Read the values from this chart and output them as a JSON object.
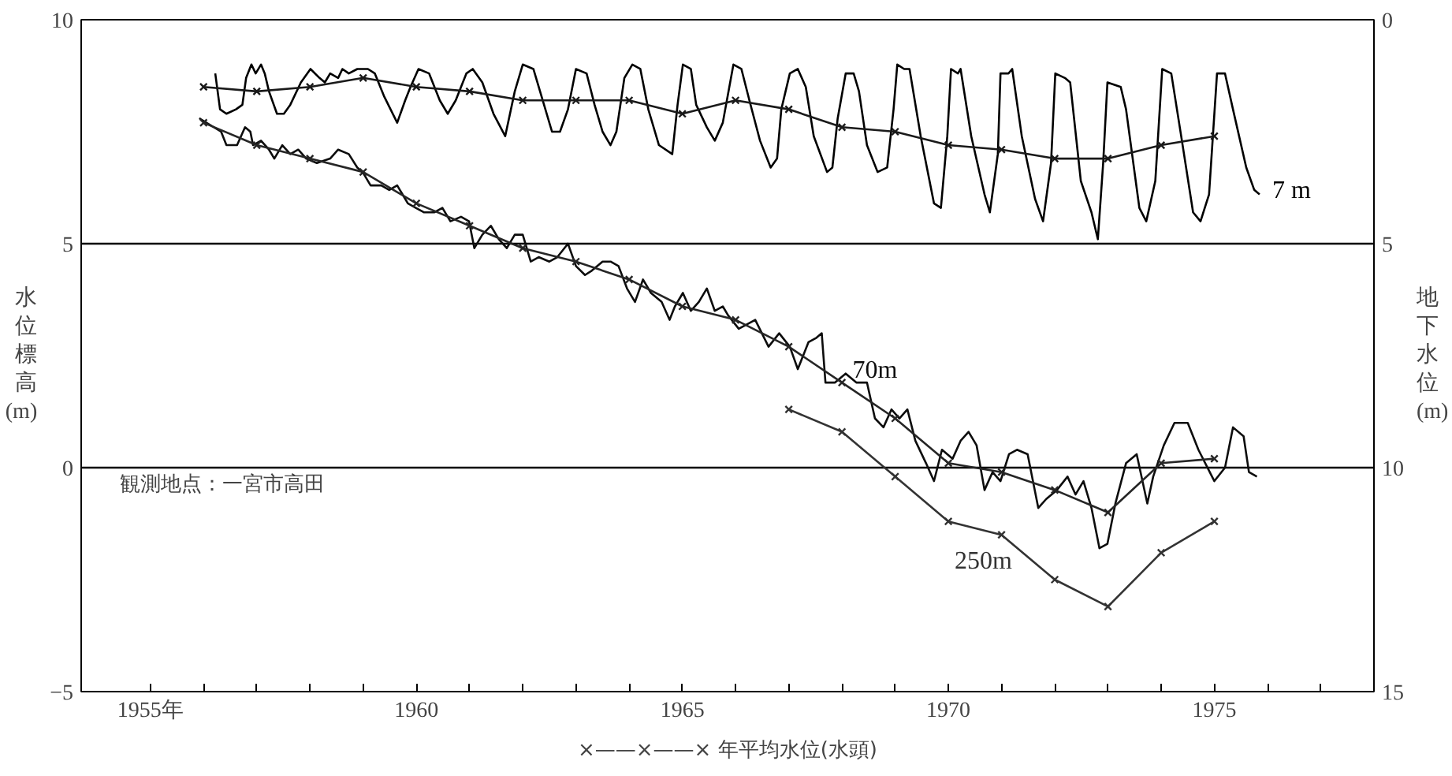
{
  "chart_data": {
    "type": "line",
    "xlim": [
      1953.7,
      1978
    ],
    "ylim": [
      -5,
      10
    ],
    "y2lim": [
      15,
      0
    ],
    "xticks": [
      {
        "value": 1955,
        "label": "1955年"
      },
      {
        "value": 1956,
        "label": null
      },
      {
        "value": 1957,
        "label": null
      },
      {
        "value": 1958,
        "label": null
      },
      {
        "value": 1959,
        "label": null
      },
      1960,
      {
        "value": 1961,
        "label": null
      },
      {
        "value": 1962,
        "label": null
      },
      {
        "value": 1963,
        "label": null
      },
      {
        "value": 1964,
        "label": null
      },
      1965,
      {
        "value": 1966,
        "label": null
      },
      {
        "value": 1967,
        "label": null
      },
      {
        "value": 1968,
        "label": null
      },
      {
        "value": 1969,
        "label": null
      },
      1970,
      {
        "value": 1971,
        "label": null
      },
      {
        "value": 1972,
        "label": null
      },
      {
        "value": 1973,
        "label": null
      },
      {
        "value": 1974,
        "label": null
      },
      1975,
      {
        "value": 1976,
        "label": null
      },
      {
        "value": 1977,
        "label": null
      }
    ],
    "yticks": [
      {
        "value": -5,
        "label": "−5"
      },
      0,
      5,
      10
    ],
    "y2ticks": [
      0,
      5,
      10,
      15
    ],
    "ylabel": "水位標高(m)",
    "y2label": "地下水位(m)",
    "grid": "y",
    "legend": false,
    "annotations": [
      "観測地点：一宮市高田",
      "×——×——× 年平均水位(水頭)"
    ],
    "series": [
      {
        "name": "7 m",
        "color": "#000000",
        "marker": "none",
        "x": [
          1956.22,
          1956.31,
          1956.43,
          1956.61,
          1956.73,
          1956.8,
          1956.9,
          1956.98,
          1957.08,
          1957.15,
          1957.23,
          1957.38,
          1957.51,
          1957.63,
          1957.83,
          1958.01,
          1958.18,
          1958.28,
          1958.38,
          1958.53,
          1958.61,
          1958.73,
          1958.89,
          1959.09,
          1959.22,
          1959.39,
          1959.64,
          1959.79,
          1959.89,
          1960.04,
          1960.24,
          1960.44,
          1960.59,
          1960.74,
          1960.94,
          1961.06,
          1961.24,
          1961.45,
          1961.67,
          1961.85,
          1962.0,
          1962.2,
          1962.4,
          1962.55,
          1962.7,
          1962.85,
          1963.0,
          1963.2,
          1963.35,
          1963.5,
          1963.65,
          1963.76,
          1963.91,
          1964.06,
          1964.21,
          1964.36,
          1964.56,
          1964.81,
          1964.91,
          1965.01,
          1965.16,
          1965.26,
          1965.46,
          1965.61,
          1965.76,
          1965.96,
          1966.11,
          1966.26,
          1966.46,
          1966.66,
          1966.78,
          1966.86,
          1967.02,
          1967.17,
          1967.32,
          1967.47,
          1967.72,
          1967.82,
          1967.92,
          1968.07,
          1968.22,
          1968.32,
          1968.47,
          1968.67,
          1968.85,
          1968.97,
          1969.04,
          1969.17,
          1969.27,
          1969.48,
          1969.73,
          1969.86,
          1969.98,
          1970.05,
          1970.18,
          1970.23,
          1970.43,
          1970.68,
          1970.78,
          1970.93,
          1970.98,
          1971.13,
          1971.2,
          1971.38,
          1971.63,
          1971.78,
          1971.93,
          1972.01,
          1972.19,
          1972.29,
          1972.49,
          1972.69,
          1972.81,
          1972.91,
          1972.99,
          1973.24,
          1973.34,
          1973.59,
          1973.72,
          1973.89,
          1974.02,
          1974.19,
          1974.39,
          1974.6,
          1974.74,
          1974.9,
          1975.05,
          1975.2,
          1975.35,
          1975.6,
          1975.75,
          1975.85
        ],
        "values": [
          8.8,
          8.0,
          7.9,
          8.0,
          8.1,
          8.7,
          9.0,
          8.8,
          9.0,
          8.8,
          8.4,
          7.9,
          7.9,
          8.1,
          8.6,
          8.9,
          8.7,
          8.6,
          8.8,
          8.7,
          8.9,
          8.8,
          8.9,
          8.9,
          8.8,
          8.3,
          7.7,
          8.2,
          8.5,
          8.9,
          8.8,
          8.2,
          7.9,
          8.2,
          8.8,
          8.9,
          8.6,
          7.9,
          7.4,
          8.4,
          9.0,
          8.9,
          8.1,
          7.5,
          7.5,
          8.0,
          8.9,
          8.8,
          8.1,
          7.5,
          7.2,
          7.5,
          8.7,
          9.0,
          8.9,
          8.0,
          7.2,
          7.0,
          8.1,
          9.0,
          8.9,
          8.1,
          7.6,
          7.3,
          7.7,
          9.0,
          8.9,
          8.2,
          7.3,
          6.7,
          6.9,
          8.0,
          8.8,
          8.9,
          8.5,
          7.4,
          6.6,
          6.7,
          7.8,
          8.8,
          8.8,
          8.4,
          7.2,
          6.6,
          6.7,
          8.0,
          9.0,
          8.9,
          8.9,
          7.4,
          5.9,
          5.8,
          7.4,
          8.9,
          8.8,
          8.9,
          7.4,
          6.1,
          5.7,
          7.0,
          8.8,
          8.8,
          8.9,
          7.4,
          6.0,
          5.5,
          6.8,
          8.8,
          8.7,
          8.6,
          6.4,
          5.7,
          5.1,
          6.8,
          8.6,
          8.5,
          8.0,
          5.8,
          5.5,
          6.4,
          8.9,
          8.8,
          7.3,
          5.7,
          5.5,
          6.1,
          8.8,
          8.8,
          8.0,
          6.7,
          6.2,
          6.1
        ]
      },
      {
        "color": "#1a1a1a",
        "marker": "cross",
        "x": [
          1956,
          1957,
          1958,
          1959,
          1960,
          1961,
          1962,
          1963,
          1964,
          1965,
          1966,
          1967,
          1968,
          1969,
          1970,
          1971,
          1972,
          1973,
          1974,
          1975
        ],
        "values": [
          8.5,
          8.4,
          8.5,
          8.7,
          8.5,
          8.4,
          8.2,
          8.2,
          8.2,
          7.9,
          8.2,
          8.0,
          7.6,
          7.5,
          7.2,
          7.1,
          6.9,
          6.9,
          7.2,
          7.4
        ]
      },
      {
        "name": "70m",
        "color": "#0d0d0d",
        "marker": "none",
        "x": [
          1955.92,
          1956.33,
          1956.43,
          1956.63,
          1956.78,
          1956.88,
          1956.93,
          1957.08,
          1957.23,
          1957.33,
          1957.48,
          1957.63,
          1957.78,
          1957.93,
          1958.13,
          1958.38,
          1958.53,
          1958.73,
          1958.89,
          1958.99,
          1959.14,
          1959.34,
          1959.49,
          1959.64,
          1959.74,
          1959.84,
          1959.99,
          1960.14,
          1960.34,
          1960.49,
          1960.64,
          1960.84,
          1960.99,
          1961.09,
          1961.24,
          1961.4,
          1961.55,
          1961.7,
          1961.85,
          1962.0,
          1962.15,
          1962.3,
          1962.5,
          1962.65,
          1962.85,
          1963.0,
          1963.17,
          1963.3,
          1963.5,
          1963.65,
          1963.8,
          1963.96,
          1964.11,
          1964.26,
          1964.41,
          1964.61,
          1964.76,
          1964.86,
          1965.01,
          1965.16,
          1965.31,
          1965.46,
          1965.61,
          1965.76,
          1965.86,
          1966.06,
          1966.37,
          1966.62,
          1966.82,
          1967.02,
          1967.17,
          1967.37,
          1967.52,
          1967.62,
          1967.69,
          1967.87,
          1968.07,
          1968.27,
          1968.47,
          1968.62,
          1968.78,
          1968.93,
          1969.08,
          1969.23,
          1969.38,
          1969.58,
          1969.73,
          1969.88,
          1970.08,
          1970.23,
          1970.38,
          1970.53,
          1970.68,
          1970.83,
          1970.98,
          1971.14,
          1971.29,
          1971.49,
          1971.69,
          1971.84,
          1972.04,
          1972.24,
          1972.39,
          1972.54,
          1972.69,
          1972.84,
          1972.99,
          1973.14,
          1973.34,
          1973.54,
          1973.74,
          1973.85,
          1974.05,
          1974.25,
          1974.5,
          1974.7,
          1975.0,
          1975.2,
          1975.35,
          1975.55,
          1975.65,
          1975.8
        ],
        "values": [
          7.8,
          7.5,
          7.2,
          7.2,
          7.6,
          7.5,
          7.2,
          7.3,
          7.1,
          6.9,
          7.2,
          7.0,
          7.1,
          6.9,
          6.8,
          6.9,
          7.1,
          7.0,
          6.7,
          6.6,
          6.3,
          6.3,
          6.2,
          6.3,
          6.1,
          5.9,
          5.8,
          5.7,
          5.7,
          5.8,
          5.5,
          5.6,
          5.5,
          4.9,
          5.2,
          5.4,
          5.1,
          4.9,
          5.2,
          5.2,
          4.6,
          4.7,
          4.6,
          4.7,
          5.0,
          4.5,
          4.3,
          4.4,
          4.6,
          4.6,
          4.5,
          4.0,
          3.7,
          4.2,
          3.9,
          3.7,
          3.3,
          3.6,
          3.9,
          3.5,
          3.7,
          4.0,
          3.5,
          3.6,
          3.4,
          3.1,
          3.3,
          2.7,
          3.0,
          2.7,
          2.2,
          2.8,
          2.9,
          3.0,
          1.9,
          1.9,
          2.1,
          1.9,
          1.9,
          1.1,
          0.9,
          1.3,
          1.1,
          1.3,
          0.6,
          0.1,
          -0.3,
          0.4,
          0.2,
          0.6,
          0.8,
          0.5,
          -0.5,
          -0.1,
          -0.3,
          0.3,
          0.4,
          0.3,
          -0.9,
          -0.7,
          -0.5,
          -0.2,
          -0.6,
          -0.3,
          -0.9,
          -1.8,
          -1.7,
          -0.8,
          0.1,
          0.3,
          -0.8,
          -0.2,
          0.5,
          1.0,
          1.0,
          0.4,
          -0.3,
          0.0,
          0.9,
          0.7,
          -0.1,
          -0.2
        ]
      },
      {
        "color": "#262626",
        "marker": "cross",
        "x": [
          1956,
          1957,
          1958,
          1959,
          1960,
          1961,
          1962,
          1963,
          1964,
          1965,
          1966,
          1967,
          1968,
          1969,
          1970,
          1971,
          1972,
          1973,
          1974,
          1975
        ],
        "values": [
          7.7,
          7.2,
          6.9,
          6.6,
          5.9,
          5.4,
          4.9,
          4.6,
          4.2,
          3.6,
          3.3,
          2.7,
          1.9,
          1.1,
          0.1,
          -0.1,
          -0.5,
          -1.0,
          0.1,
          0.2
        ]
      },
      {
        "name": "250m",
        "color": "#333333",
        "marker": "cross",
        "x": [
          1967,
          1968,
          1969,
          1970,
          1971,
          1972,
          1973,
          1974,
          1975
        ],
        "values": [
          1.3,
          0.8,
          -0.2,
          -1.2,
          -1.5,
          -2.5,
          -3.1,
          -1.9,
          -1.2
        ]
      }
    ]
  }
}
